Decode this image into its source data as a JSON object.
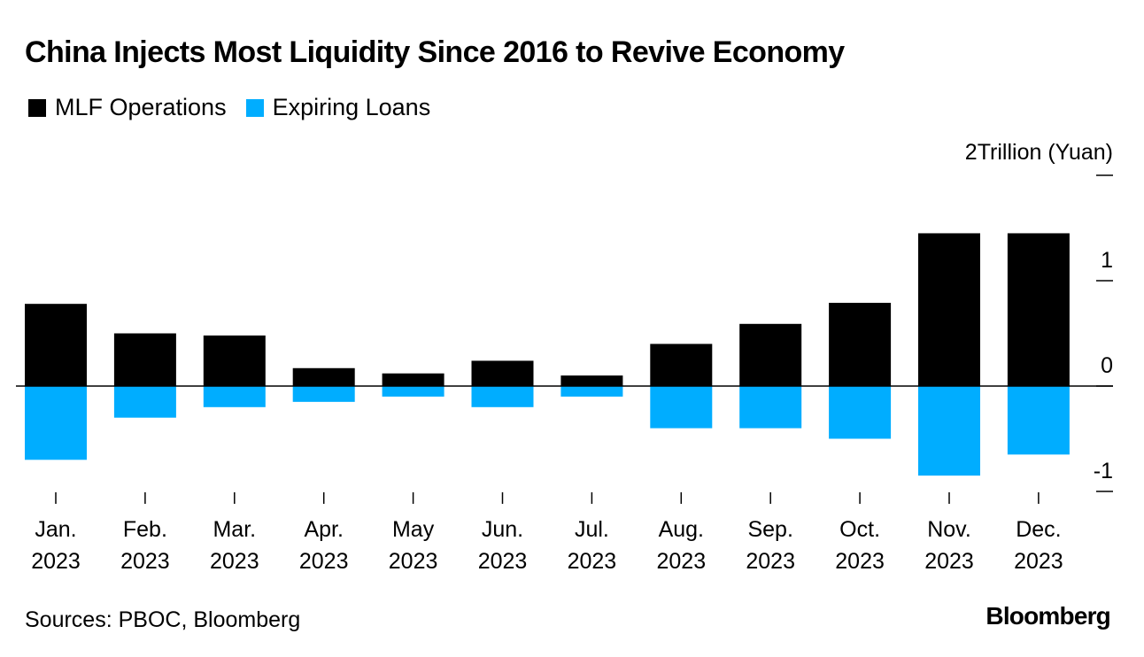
{
  "title": "China Injects Most Liquidity Since 2016 to Revive Economy",
  "source": "Sources: PBOC, Bloomberg",
  "brand": "Bloomberg",
  "colors": {
    "mlf": "#000000",
    "expiring": "#00adff",
    "axis": "#000000"
  },
  "chart_data": {
    "type": "bar",
    "title": "China Injects Most Liquidity Since 2016 to Revive Economy",
    "ylabel": "Trillion (Yuan)",
    "ylim": [
      -1.2,
      2
    ],
    "yticks": [
      {
        "value": 2,
        "label": "2"
      },
      {
        "value": 1,
        "label": "1"
      },
      {
        "value": 0,
        "label": "0"
      },
      {
        "value": -1,
        "label": "-1"
      }
    ],
    "y_unit_label": "Trillion (Yuan)",
    "categories": [
      {
        "month": "Jan.",
        "year": "2023"
      },
      {
        "month": "Feb.",
        "year": "2023"
      },
      {
        "month": "Mar.",
        "year": "2023"
      },
      {
        "month": "Apr.",
        "year": "2023"
      },
      {
        "month": "May",
        "year": "2023"
      },
      {
        "month": "Jun.",
        "year": "2023"
      },
      {
        "month": "Jul.",
        "year": "2023"
      },
      {
        "month": "Aug.",
        "year": "2023"
      },
      {
        "month": "Sep.",
        "year": "2023"
      },
      {
        "month": "Oct.",
        "year": "2023"
      },
      {
        "month": "Nov.",
        "year": "2023"
      },
      {
        "month": "Dec.",
        "year": "2023"
      }
    ],
    "series": [
      {
        "name": "MLF Operations",
        "color": "#000000",
        "values": [
          0.78,
          0.5,
          0.48,
          0.17,
          0.12,
          0.24,
          0.1,
          0.4,
          0.59,
          0.79,
          1.45,
          1.45
        ]
      },
      {
        "name": "Expiring Loans",
        "color": "#00adff",
        "values": [
          -0.7,
          -0.3,
          -0.2,
          -0.15,
          -0.1,
          -0.2,
          -0.1,
          -0.4,
          -0.4,
          -0.5,
          -0.85,
          -0.65
        ]
      }
    ]
  }
}
